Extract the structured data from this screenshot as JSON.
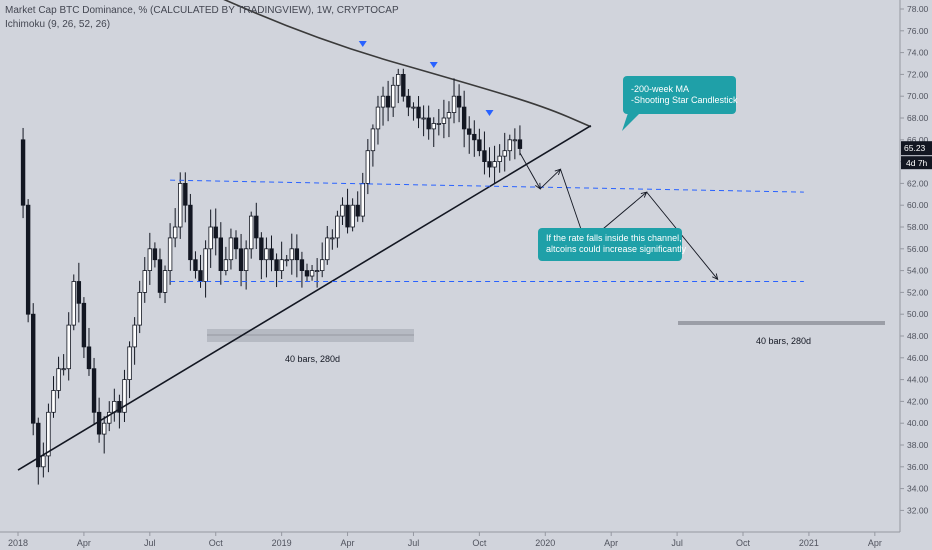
{
  "header": {
    "title": "Market Cap BTC Dominance, % (CALCULATED BY TRADINGVIEW), 1W, CRYPTOCAP",
    "indicator": "Ichimoku (9, 26, 52, 26)"
  },
  "colors": {
    "background": "#d1d4dc",
    "candle_up": "#ffffff",
    "candle_down": "#131722",
    "trendline": "#131722",
    "channel": "#2962ff",
    "ma": "#3a3a3a",
    "callout": "#1fa0a8",
    "marker": "#2962ff",
    "price_badge": "#131722"
  },
  "annotations": {
    "ma_callout": [
      "-200-week MA",
      "-Shooting Star Candlestick"
    ],
    "channel_callout": [
      "If the rate falls inside this channel,",
      "altcoins could increase significantly"
    ],
    "range_left": "40 bars, 280d",
    "range_right": "40 bars, 280d"
  },
  "price_axis": {
    "last_price": "65.23",
    "countdown": "4d 7h"
  },
  "chart_data": {
    "type": "candlestick",
    "title": "Market Cap BTC Dominance, % (CALCULATED BY TRADINGVIEW), 1W, CRYPTOCAP",
    "ylim": [
      31,
      79
    ],
    "y_ticks": [
      32,
      34,
      36,
      38,
      40,
      42,
      44,
      46,
      48,
      50,
      52,
      54,
      56,
      58,
      60,
      62,
      64,
      66,
      68,
      70,
      72,
      74,
      76,
      78
    ],
    "x_ticks": [
      "2018",
      "Apr",
      "Jul",
      "Oct",
      "2019",
      "Apr",
      "Jul",
      "Oct",
      "2020",
      "Apr",
      "Jul",
      "Oct",
      "2021",
      "Apr"
    ],
    "x_tick_weeks": [
      0,
      13,
      26,
      39,
      52,
      65,
      78,
      91,
      104,
      117,
      130,
      143,
      156,
      169
    ],
    "price_anchors_weekly": [
      [
        0,
        66
      ],
      [
        1,
        60
      ],
      [
        2,
        50
      ],
      [
        3,
        40
      ],
      [
        4,
        36
      ],
      [
        5,
        37
      ],
      [
        6,
        41
      ],
      [
        7,
        43
      ],
      [
        8,
        45
      ],
      [
        9,
        45
      ],
      [
        10,
        49
      ],
      [
        11,
        53
      ],
      [
        12,
        51
      ],
      [
        13,
        47
      ],
      [
        14,
        45
      ],
      [
        15,
        41
      ],
      [
        16,
        39
      ],
      [
        17,
        40
      ],
      [
        18,
        41
      ],
      [
        19,
        42
      ],
      [
        20,
        41
      ],
      [
        21,
        44
      ],
      [
        22,
        47
      ],
      [
        23,
        49
      ],
      [
        24,
        52
      ],
      [
        25,
        54
      ],
      [
        26,
        56
      ],
      [
        27,
        55
      ],
      [
        28,
        52
      ],
      [
        29,
        54
      ],
      [
        30,
        57
      ],
      [
        31,
        58
      ],
      [
        32,
        62
      ],
      [
        33,
        60
      ],
      [
        34,
        55
      ],
      [
        35,
        54
      ],
      [
        36,
        53
      ],
      [
        37,
        56
      ],
      [
        38,
        58
      ],
      [
        39,
        57
      ],
      [
        40,
        54
      ],
      [
        41,
        55
      ],
      [
        42,
        57
      ],
      [
        43,
        56
      ],
      [
        44,
        54
      ],
      [
        45,
        56
      ],
      [
        46,
        59
      ],
      [
        47,
        57
      ],
      [
        48,
        55
      ],
      [
        49,
        56
      ],
      [
        50,
        55
      ],
      [
        51,
        54
      ],
      [
        52,
        55
      ],
      [
        53,
        55
      ],
      [
        54,
        56
      ],
      [
        55,
        55
      ],
      [
        56,
        54
      ],
      [
        57,
        53.5
      ],
      [
        58,
        54
      ],
      [
        59,
        54
      ],
      [
        60,
        55
      ],
      [
        61,
        57
      ],
      [
        62,
        57
      ],
      [
        63,
        59
      ],
      [
        64,
        60
      ],
      [
        65,
        58
      ],
      [
        66,
        60
      ],
      [
        67,
        59
      ],
      [
        68,
        62
      ],
      [
        69,
        65
      ],
      [
        70,
        67
      ],
      [
        71,
        69
      ],
      [
        72,
        70
      ],
      [
        73,
        69
      ],
      [
        74,
        71
      ],
      [
        75,
        72
      ],
      [
        76,
        70
      ],
      [
        77,
        69
      ],
      [
        78,
        69
      ],
      [
        79,
        68
      ],
      [
        80,
        68
      ],
      [
        81,
        67
      ],
      [
        82,
        67.5
      ],
      [
        83,
        67.5
      ],
      [
        84,
        68
      ],
      [
        85,
        68.5
      ],
      [
        86,
        70
      ],
      [
        87,
        69
      ],
      [
        88,
        67
      ],
      [
        89,
        66.5
      ],
      [
        90,
        66
      ],
      [
        91,
        65
      ],
      [
        92,
        64
      ],
      [
        93,
        63.5
      ],
      [
        94,
        64
      ],
      [
        95,
        64.5
      ],
      [
        96,
        65
      ],
      [
        97,
        66
      ],
      [
        98,
        66
      ],
      [
        99,
        65.2
      ]
    ],
    "trendline": [
      [
        0,
        35.7
      ],
      [
        113,
        67.3
      ]
    ],
    "channel_upper": [
      [
        30,
        62.3
      ],
      [
        155,
        61.2
      ]
    ],
    "channel_lower": [
      [
        30,
        53.0
      ],
      [
        155,
        53.0
      ]
    ],
    "ma_200w": [
      [
        30,
        81
      ],
      [
        60,
        75
      ],
      [
        90,
        71
      ],
      [
        104,
        69
      ],
      [
        113,
        67.2
      ]
    ],
    "projection_path": [
      [
        99,
        64.8
      ],
      [
        103,
        61.5
      ],
      [
        107,
        63.3
      ],
      [
        112,
        56.5
      ],
      [
        124,
        61.2
      ],
      [
        138,
        53.2
      ]
    ],
    "markers_weeks": [
      68,
      82,
      93
    ]
  }
}
